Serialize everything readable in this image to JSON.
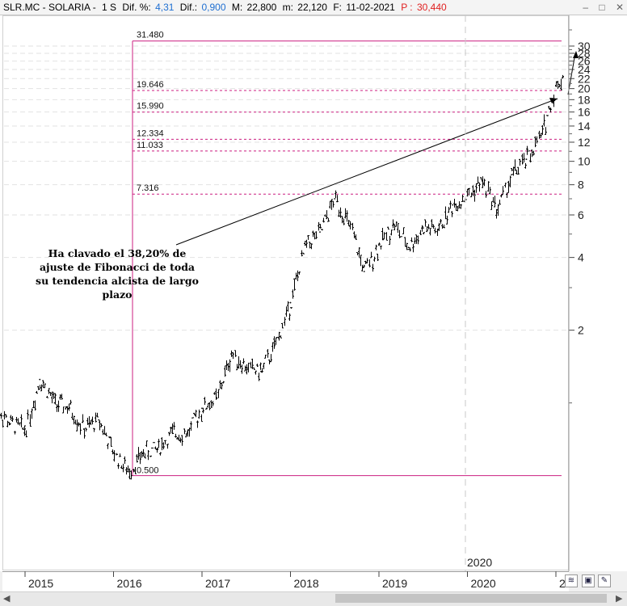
{
  "header": {
    "title": "SLR.MC - SOLARIA -",
    "period": "1 S",
    "dif_pct_label": "Dif. %:",
    "dif_pct_value": "4,31",
    "dif_label": "Dif.:",
    "dif_value": "0,900",
    "max_label": "M:",
    "max_value": "22,800",
    "min_label": "m:",
    "min_value": "22,120",
    "date_label": "F:",
    "date_value": "11-02-2021",
    "price_label": "P :",
    "price_value": "30,440"
  },
  "window_controls": {
    "minimize": "–",
    "maximize": "□",
    "close": "✕"
  },
  "annotation": {
    "text": "Ha clavado el 38,20% de ajuste de Fibonacci de toda su tendencia alcista de largo plazo"
  },
  "marker_label": "2020",
  "chart_data": {
    "type": "line",
    "subtype": "weekly-bars",
    "scale": "log",
    "ylim": [
      0.45,
      36
    ],
    "y_ticks": [
      2,
      4,
      6,
      8,
      10,
      12,
      14,
      16,
      18,
      20,
      22,
      24,
      26,
      28,
      30
    ],
    "x_tick_labels": [
      "2015",
      "2016",
      "2017",
      "2018",
      "2019",
      "2020",
      "2020",
      "2"
    ],
    "fibonacci_levels": [
      "31.480",
      "19.646",
      "15.990",
      "12.334",
      "11.033",
      "7.316",
      "0.500"
    ],
    "series": [
      {
        "x": [
          "2014-09",
          "2014-11",
          "2015-01",
          "2015-03",
          "2015-05",
          "2015-07",
          "2015-09",
          "2015-11",
          "2016-01",
          "2016-03",
          "2016-05",
          "2016-07",
          "2016-09",
          "2016-11",
          "2017-01",
          "2017-03",
          "2017-05",
          "2017-07",
          "2017-09",
          "2017-11",
          "2018-01",
          "2018-03",
          "2018-05",
          "2018-07",
          "2018-09",
          "2018-11",
          "2019-01",
          "2019-03",
          "2019-05",
          "2019-07",
          "2019-09",
          "2019-11",
          "2020-01",
          "2020-03",
          "2020-05",
          "2020-07",
          "2020-09",
          "2020-11",
          "2021-01",
          "2021-02"
        ],
        "y": [
          0.95,
          0.82,
          0.78,
          1.25,
          1.0,
          0.95,
          0.78,
          0.85,
          0.62,
          0.52,
          0.62,
          0.65,
          0.75,
          0.75,
          0.95,
          1.05,
          1.6,
          1.4,
          1.35,
          1.75,
          2.6,
          4.5,
          5.1,
          7.0,
          5.4,
          3.5,
          4.5,
          5.5,
          4.4,
          5.3,
          5.2,
          6.6,
          7.2,
          8.3,
          6.3,
          8.8,
          10.2,
          12.8,
          20.5,
          22.4
        ]
      }
    ]
  }
}
